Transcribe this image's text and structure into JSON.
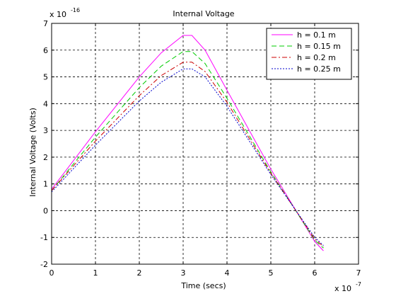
{
  "chart_data": {
    "type": "line",
    "title": "Internal Voltage",
    "xlabel": "Time (secs)",
    "ylabel": "Internal Voltage (Volts)",
    "x_multiplier": "x 10",
    "x_exponent": "-7",
    "y_multiplier": "x 10",
    "y_exponent": "-16",
    "xlim": [
      0,
      7
    ],
    "ylim": [
      -2,
      7
    ],
    "x_ticks": [
      "0",
      "1",
      "2",
      "3",
      "4",
      "5",
      "6",
      "7"
    ],
    "y_ticks": [
      "-2",
      "-1",
      "0",
      "1",
      "2",
      "3",
      "4",
      "5",
      "6",
      "7"
    ],
    "grid": true,
    "legend_position": "top-right",
    "series": [
      {
        "name": "h = 0.1 m",
        "color": "#ff00ff",
        "dash": "solid",
        "x": [
          0,
          1,
          2,
          2.5,
          3,
          3.2,
          3.5,
          4,
          5,
          6,
          6.2
        ],
        "y": [
          0.8,
          2.95,
          5.0,
          5.9,
          6.55,
          6.55,
          6.0,
          4.5,
          1.55,
          -1.15,
          -1.5
        ]
      },
      {
        "name": "h = 0.15 m",
        "color": "#00cc00",
        "dash": "dashed",
        "x": [
          0,
          1,
          2,
          2.5,
          3,
          3.2,
          3.5,
          4,
          5,
          6,
          6.2
        ],
        "y": [
          0.75,
          2.75,
          4.6,
          5.4,
          5.95,
          5.95,
          5.5,
          4.2,
          1.45,
          -1.1,
          -1.4
        ]
      },
      {
        "name": "h = 0.2 m",
        "color": "#cc0000",
        "dash": "dashdot",
        "x": [
          0,
          1,
          2,
          2.5,
          3,
          3.2,
          3.5,
          4,
          5,
          6,
          6.2
        ],
        "y": [
          0.75,
          2.6,
          4.3,
          5.05,
          5.55,
          5.55,
          5.2,
          4.05,
          1.4,
          -1.05,
          -1.35
        ]
      },
      {
        "name": "h = 0.25 m",
        "color": "#0000cc",
        "dash": "dotted",
        "x": [
          0,
          1,
          2,
          2.5,
          3,
          3.2,
          3.5,
          4,
          5,
          6,
          6.2
        ],
        "y": [
          0.7,
          2.45,
          4.1,
          4.8,
          5.3,
          5.3,
          5.0,
          3.9,
          1.35,
          -1.0,
          -1.3
        ]
      }
    ]
  }
}
